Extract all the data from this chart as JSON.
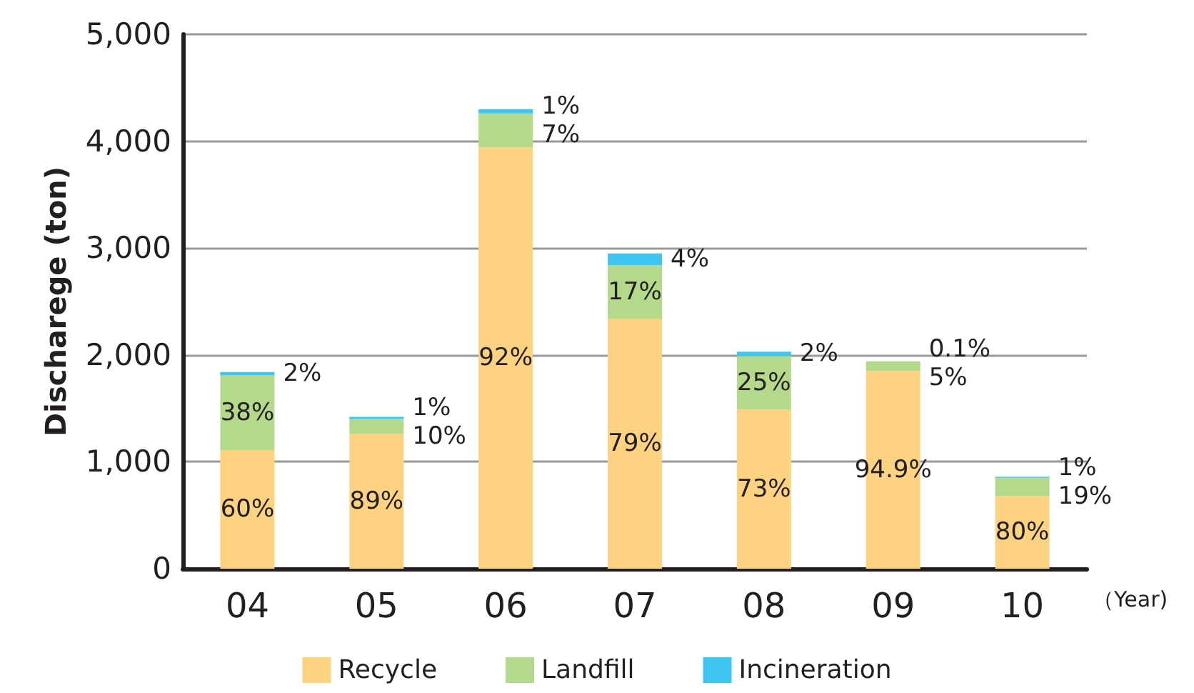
{
  "chart_data": {
    "type": "bar",
    "stacked": true,
    "xlabel": "（Year)",
    "ylabel": "Discharege (ton)",
    "categories": [
      "04",
      "05",
      "06",
      "07",
      "08",
      "09",
      "10"
    ],
    "series": [
      {
        "name": "Recycle",
        "color": "#fdd382",
        "values": [
          1110,
          1260,
          3940,
          2340,
          1490,
          1850,
          680
        ]
      },
      {
        "name": "Landfill",
        "color": "#b5d98a",
        "values": [
          700,
          140,
          320,
          500,
          500,
          90,
          170
        ]
      },
      {
        "name": "Incineration",
        "color": "#3ec5f0",
        "values": [
          30,
          20,
          40,
          110,
          40,
          0,
          10
        ]
      }
    ],
    "annotations": [
      {
        "text": "60%",
        "x": "04",
        "y": 1110
      },
      {
        "text": "38%",
        "x": "04",
        "y": 1810
      },
      {
        "text": "2%",
        "x": "04",
        "y": 1840
      },
      {
        "text": "89%",
        "x": "05",
        "y": 1260
      },
      {
        "text": "10%",
        "x": "05",
        "y": 1400
      },
      {
        "text": "1%",
        "x": "05",
        "y": 1420
      },
      "92%",
      {
        "text": "7%",
        "x": "06",
        "y": 4260
      },
      {
        "text": "1%",
        "x": "06",
        "y": 4300
      },
      "79%",
      {
        "text": "17%",
        "x": "07",
        "y": 2840
      },
      {
        "text": "4%",
        "x": "07",
        "y": 2950
      },
      {
        "text": "73%",
        "x": "08",
        "y": 1490
      },
      {
        "text": "25%",
        "x": "08",
        "y": 1990
      },
      {
        "text": "2%",
        "x": "08",
        "y": 2030
      },
      "94.9%",
      {
        "text": "5%",
        "x": "09",
        "y": 1940
      },
      {
        "text": "0.1%",
        "x": "09",
        "y": 1940
      },
      {
        "text": "80%",
        "x": "10",
        "y": 680
      },
      {
        "text": "19%",
        "x": "10",
        "y": 850
      },
      {
        "text": "1%",
        "x": "10",
        "y": 860
      }
    ],
    "ylim": [
      0,
      5000
    ],
    "yticks": [
      {
        "value": 0,
        "label": "0"
      },
      {
        "value": 1000,
        "label": "1,000"
      },
      {
        "value": 2000,
        "label": "2,000"
      },
      {
        "value": 3000,
        "label": "3,000"
      },
      {
        "value": 4000,
        "label": "4,000"
      },
      {
        "value": 5000,
        "label": "5,000"
      }
    ],
    "grid": "y",
    "legend": "bottom"
  }
}
